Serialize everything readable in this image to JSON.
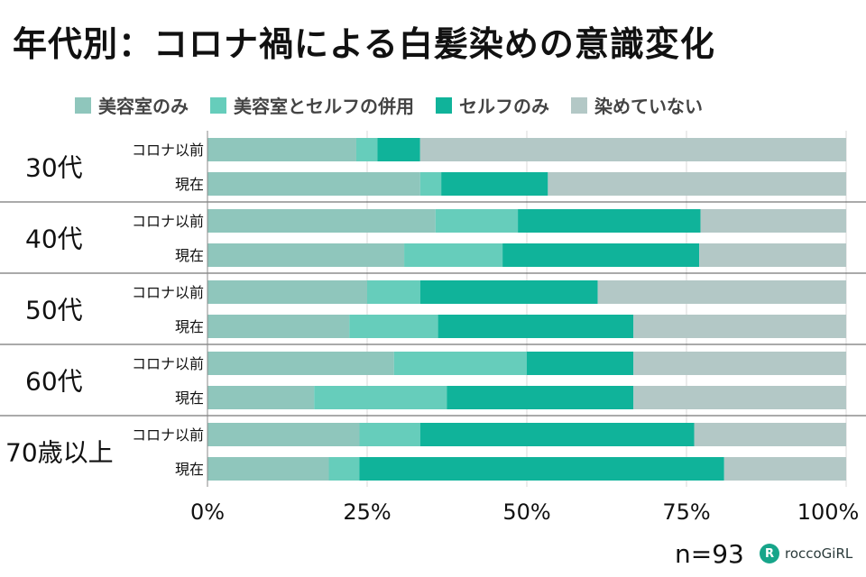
{
  "chart_data": {
    "type": "bar",
    "orientation": "horizontal",
    "stacked": true,
    "title": "年代別：コロナ禍による白髪染めの意識変化",
    "series_names": [
      "美容室のみ",
      "美容室とセルフの併用",
      "セルフのみ",
      "染めていない"
    ],
    "colors": [
      "#8fc6bc",
      "#66cdbb",
      "#10b39a",
      "#b3c8c6"
    ],
    "x_ticks": [
      "0%",
      "25%",
      "50%",
      "75%",
      "100%"
    ],
    "xlim": [
      0,
      100
    ],
    "groups": [
      {
        "label": "30代",
        "rows": [
          {
            "label": "コロナ以前",
            "values": [
              23.3,
              3.3,
              6.7,
              66.7
            ]
          },
          {
            "label": "現在",
            "values": [
              33.3,
              3.3,
              16.7,
              46.7
            ]
          }
        ]
      },
      {
        "label": "40代",
        "rows": [
          {
            "label": "コロナ以前",
            "values": [
              35.7,
              12.9,
              28.6,
              22.8
            ]
          },
          {
            "label": "現在",
            "values": [
              30.8,
              15.4,
              30.8,
              23.0
            ]
          }
        ]
      },
      {
        "label": "50代",
        "rows": [
          {
            "label": "コロナ以前",
            "values": [
              25.0,
              8.3,
              27.8,
              38.9
            ]
          },
          {
            "label": "現在",
            "values": [
              22.2,
              13.9,
              30.6,
              33.3
            ]
          }
        ]
      },
      {
        "label": "60代",
        "rows": [
          {
            "label": "コロナ以前",
            "values": [
              29.2,
              20.8,
              16.7,
              33.3
            ]
          },
          {
            "label": "現在",
            "values": [
              16.7,
              20.8,
              29.2,
              33.3
            ]
          }
        ]
      },
      {
        "label": "70歳以上",
        "rows": [
          {
            "label": "コロナ以前",
            "values": [
              23.8,
              9.5,
              42.9,
              23.8
            ]
          },
          {
            "label": "現在",
            "values": [
              19.0,
              4.8,
              57.1,
              19.1
            ]
          }
        ]
      }
    ]
  },
  "footer": {
    "n_label": "n=93",
    "brand": "roccoGiRL",
    "brand_icon_glyph": "R"
  }
}
